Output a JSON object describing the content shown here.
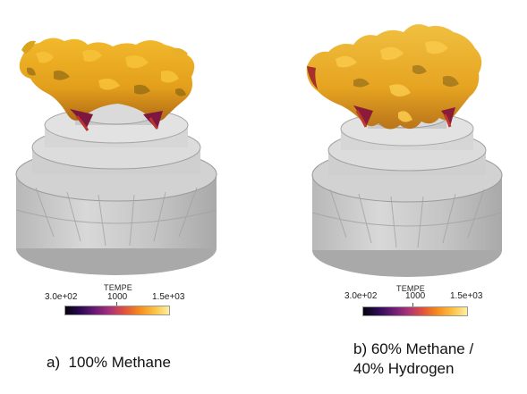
{
  "panels": [
    {
      "id": "a",
      "colorbar": {
        "title": "TEMPE",
        "min_label": "3.0e+02",
        "mid_label": "1000",
        "max_label": "1.5e+03",
        "colormap": [
          "#05030f",
          "#2b0a52",
          "#6a1a76",
          "#a8337a",
          "#e0523d",
          "#f58b1e",
          "#fcc043",
          "#fcf0a0"
        ]
      },
      "caption": "a)  100% Methane",
      "flame_colors": {
        "base": "#d99a14",
        "highlight": "#f7c33a",
        "shadow": "#7a5a12",
        "root": "#7d1740"
      }
    },
    {
      "id": "b",
      "colorbar": {
        "title": "TEMPE",
        "min_label": "3.0e+02",
        "mid_label": "1000",
        "max_label": "1.5e+03",
        "colormap": [
          "#05030f",
          "#2b0a52",
          "#6a1a76",
          "#a8337a",
          "#e0523d",
          "#f58b1e",
          "#fcc043",
          "#fcf0a0"
        ]
      },
      "caption_line1": "b) 60% Methane /",
      "caption_line2": "40% Hydrogen",
      "flame_colors": {
        "base": "#dc9d18",
        "highlight": "#f9c94a",
        "shadow": "#80601a",
        "root": "#8a1c3a"
      }
    }
  ]
}
